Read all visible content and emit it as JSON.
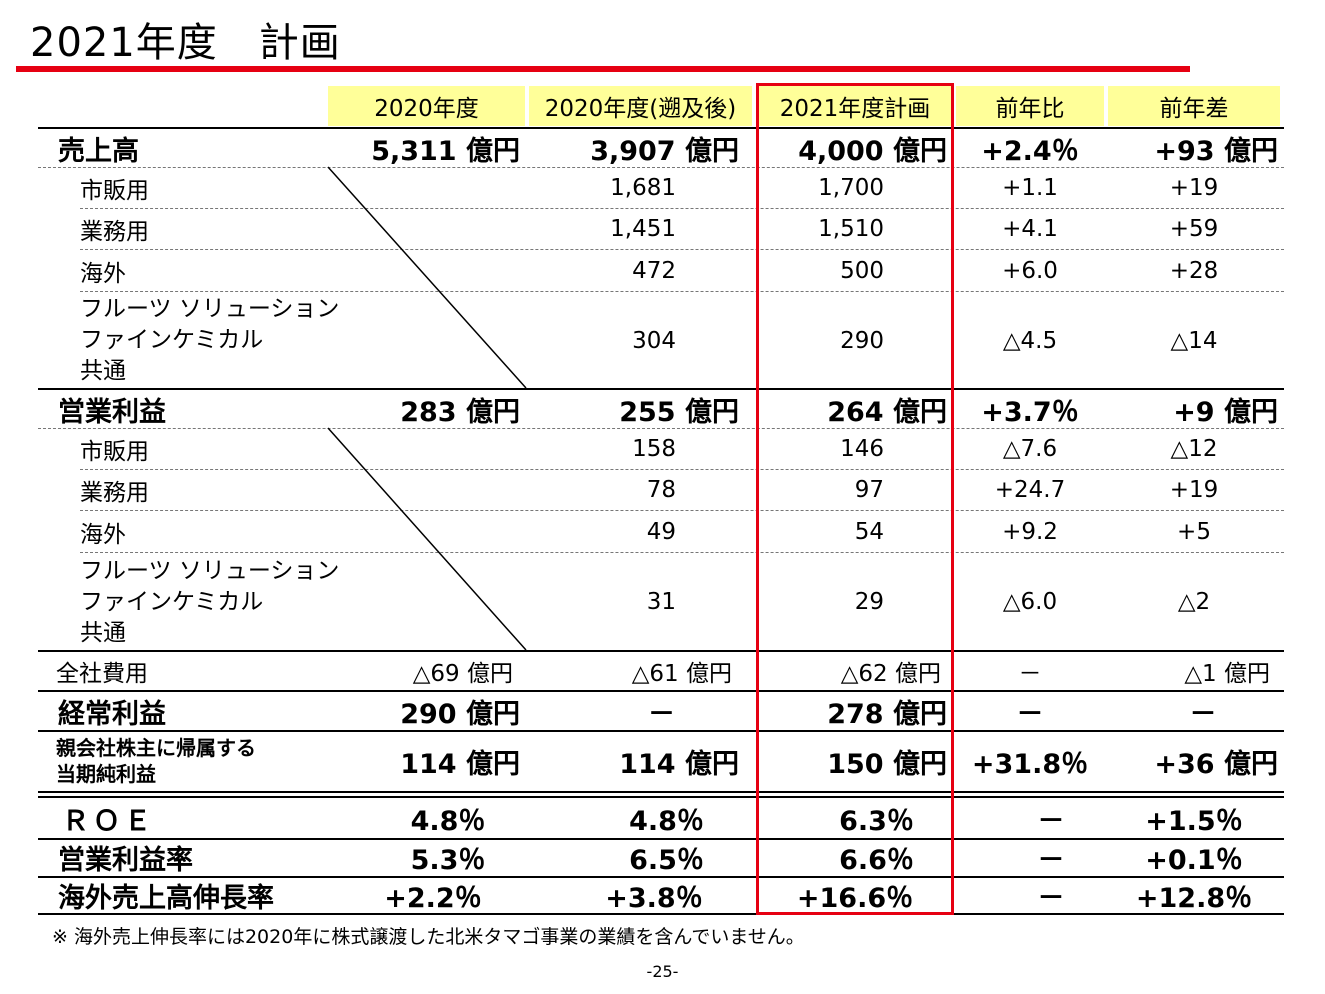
{
  "title": "2021年度　計画",
  "headers": [
    "2020年度",
    "2020年度(遡及後)",
    "2021年度計画",
    "前年比",
    "前年差"
  ],
  "rows": {
    "sales": {
      "label": "売上高",
      "v": [
        "5,311 億円",
        "3,907 億円",
        "4,000 億円",
        "+2.4％",
        "+93 億円"
      ]
    },
    "sales_retail": {
      "label": "市販用",
      "v": [
        "",
        "1,681",
        "1,700",
        "+1.1",
        "+19"
      ]
    },
    "sales_business": {
      "label": "業務用",
      "v": [
        "",
        "1,451",
        "1,510",
        "+4.1",
        "+59"
      ]
    },
    "sales_overseas": {
      "label": "海外",
      "v": [
        "",
        "472",
        "500",
        "+6.0",
        "+28"
      ]
    },
    "sales_other": {
      "label_lines": [
        "フルーツ ソリューション",
        "ファインケミカル",
        "共通"
      ],
      "v": [
        "",
        "304",
        "290",
        "△4.5",
        "△14"
      ]
    },
    "op": {
      "label": "営業利益",
      "v": [
        "283 億円",
        "255 億円",
        "264 億円",
        "+3.7％",
        "+9 億円"
      ]
    },
    "op_retail": {
      "label": "市販用",
      "v": [
        "",
        "158",
        "146",
        "△7.6",
        "△12"
      ]
    },
    "op_business": {
      "label": "業務用",
      "v": [
        "",
        "78",
        "97",
        "+24.7",
        "+19"
      ]
    },
    "op_overseas": {
      "label": "海外",
      "v": [
        "",
        "49",
        "54",
        "+9.2",
        "+5"
      ]
    },
    "op_other": {
      "label_lines": [
        "フルーツ ソリューション",
        "ファインケミカル",
        "共通"
      ],
      "v": [
        "",
        "31",
        "29",
        "△6.0",
        "△2"
      ]
    },
    "corporate": {
      "label": "全社費用",
      "v": [
        "△69 億円",
        "△61 億円",
        "△62 億円",
        "－",
        "△1 億円"
      ]
    },
    "ordinary": {
      "label": "経常利益",
      "v": [
        "290 億円",
        "－",
        "278 億円",
        "－",
        "－"
      ]
    },
    "net": {
      "label_lines": [
        "親会社株主に帰属する",
        "当期純利益"
      ],
      "v": [
        "114 億円",
        "114 億円",
        "150 億円",
        "+31.8％",
        "+36 億円"
      ]
    },
    "roe": {
      "label": "ＲＯＥ",
      "v": [
        "4.8％",
        "4.8％",
        "6.3％",
        "－",
        "+1.5％"
      ]
    },
    "op_margin": {
      "label": "営業利益率",
      "v": [
        "5.3％",
        "6.5％",
        "6.6％",
        "－",
        "+0.1％"
      ]
    },
    "overseas_growth": {
      "label": "海外売上高伸長率",
      "v": [
        "+2.2％",
        "+3.8％",
        "+16.6％",
        "－",
        "+12.8％"
      ]
    }
  },
  "footnote": "※ 海外売上伸長率には2020年に株式譲渡した北米タマゴ事業の業績を含んでいません。",
  "page_number": "-25-",
  "colors": {
    "accent": "#e60012",
    "header_bg": "#ffff99"
  }
}
